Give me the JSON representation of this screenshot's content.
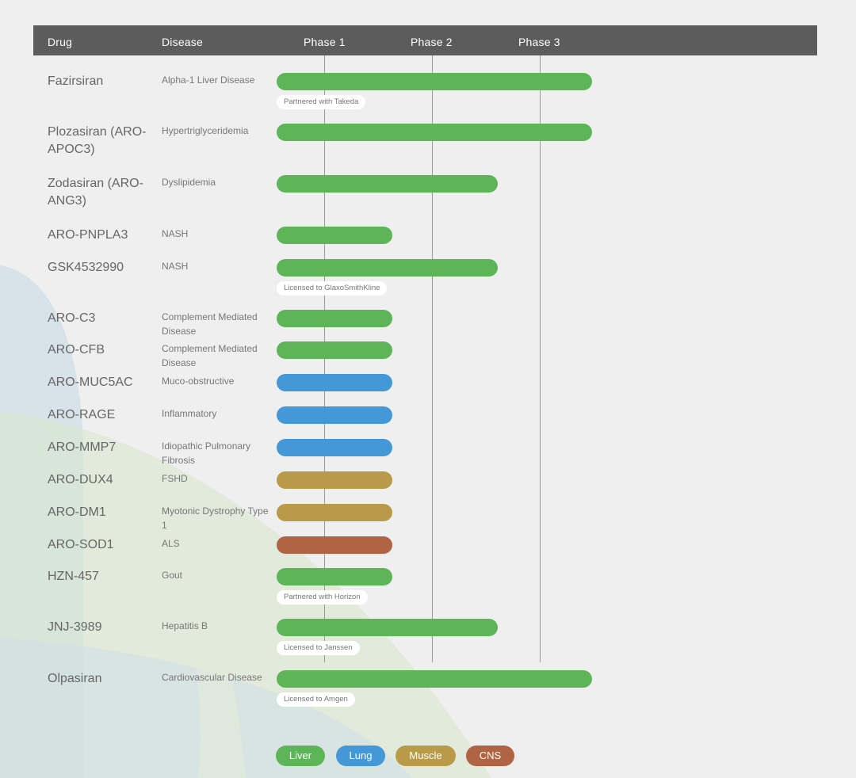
{
  "header": {
    "drug": "Drug",
    "disease": "Disease",
    "phases": [
      "Phase 1",
      "Phase 2",
      "Phase 3"
    ]
  },
  "colors": {
    "Liver": "#5eb558",
    "Lung": "#4598d8",
    "Muscle": "#b99a49",
    "CNS": "#b06444"
  },
  "chart_data": {
    "type": "bar",
    "orientation": "horizontal",
    "value_description": "phase reached (1 = Phase 1 ... 3 = Phase 3)",
    "phase_scale": [
      "Phase 1",
      "Phase 2",
      "Phase 3"
    ],
    "rows": [
      {
        "drug": "Fazirsiran",
        "disease": "Alpha-1 Liver Disease",
        "area": "Liver",
        "phase": 3,
        "note": "Partnered with Takeda"
      },
      {
        "drug": "Plozasiran (ARO-APOC3)",
        "disease": "Hypertriglyceridemia",
        "area": "Liver",
        "phase": 3,
        "note": ""
      },
      {
        "drug": "Zodasiran (ARO-ANG3)",
        "disease": "Dyslipidemia",
        "area": "Liver",
        "phase": 2,
        "note": ""
      },
      {
        "drug": "ARO-PNPLA3",
        "disease": "NASH",
        "area": "Liver",
        "phase": 1,
        "note": ""
      },
      {
        "drug": "GSK4532990",
        "disease": "NASH",
        "area": "Liver",
        "phase": 2,
        "note": "Licensed to GlaxoSmithKline"
      },
      {
        "drug": "ARO-C3",
        "disease": "Complement Mediated Disease",
        "area": "Liver",
        "phase": 1,
        "note": ""
      },
      {
        "drug": "ARO-CFB",
        "disease": "Complement Mediated Disease",
        "area": "Liver",
        "phase": 1,
        "note": ""
      },
      {
        "drug": "ARO-MUC5AC",
        "disease": "Muco-obstructive",
        "area": "Lung",
        "phase": 1,
        "note": ""
      },
      {
        "drug": "ARO-RAGE",
        "disease": "Inflammatory",
        "area": "Lung",
        "phase": 1,
        "note": ""
      },
      {
        "drug": "ARO-MMP7",
        "disease": "Idiopathic Pulmonary Fibrosis",
        "area": "Lung",
        "phase": 1,
        "note": ""
      },
      {
        "drug": "ARO-DUX4",
        "disease": "FSHD",
        "area": "Muscle",
        "phase": 1,
        "note": ""
      },
      {
        "drug": "ARO-DM1",
        "disease": "Myotonic Dystrophy Type 1",
        "area": "Muscle",
        "phase": 1,
        "note": ""
      },
      {
        "drug": "ARO-SOD1",
        "disease": "ALS",
        "area": "CNS",
        "phase": 1,
        "note": ""
      },
      {
        "drug": "HZN-457",
        "disease": "Gout",
        "area": "Liver",
        "phase": 1,
        "note": "Partnered with Horizon"
      },
      {
        "drug": "JNJ-3989",
        "disease": "Hepatitis B",
        "area": "Liver",
        "phase": 2,
        "note": "Licensed to Janssen"
      },
      {
        "drug": "Olpasiran",
        "disease": "Cardiovascular Disease",
        "area": "Liver",
        "phase": 3,
        "note": "Licensed to Amgen"
      }
    ],
    "legend": [
      "Liver",
      "Lung",
      "Muscle",
      "CNS"
    ],
    "legend_position": "bottom-center"
  }
}
